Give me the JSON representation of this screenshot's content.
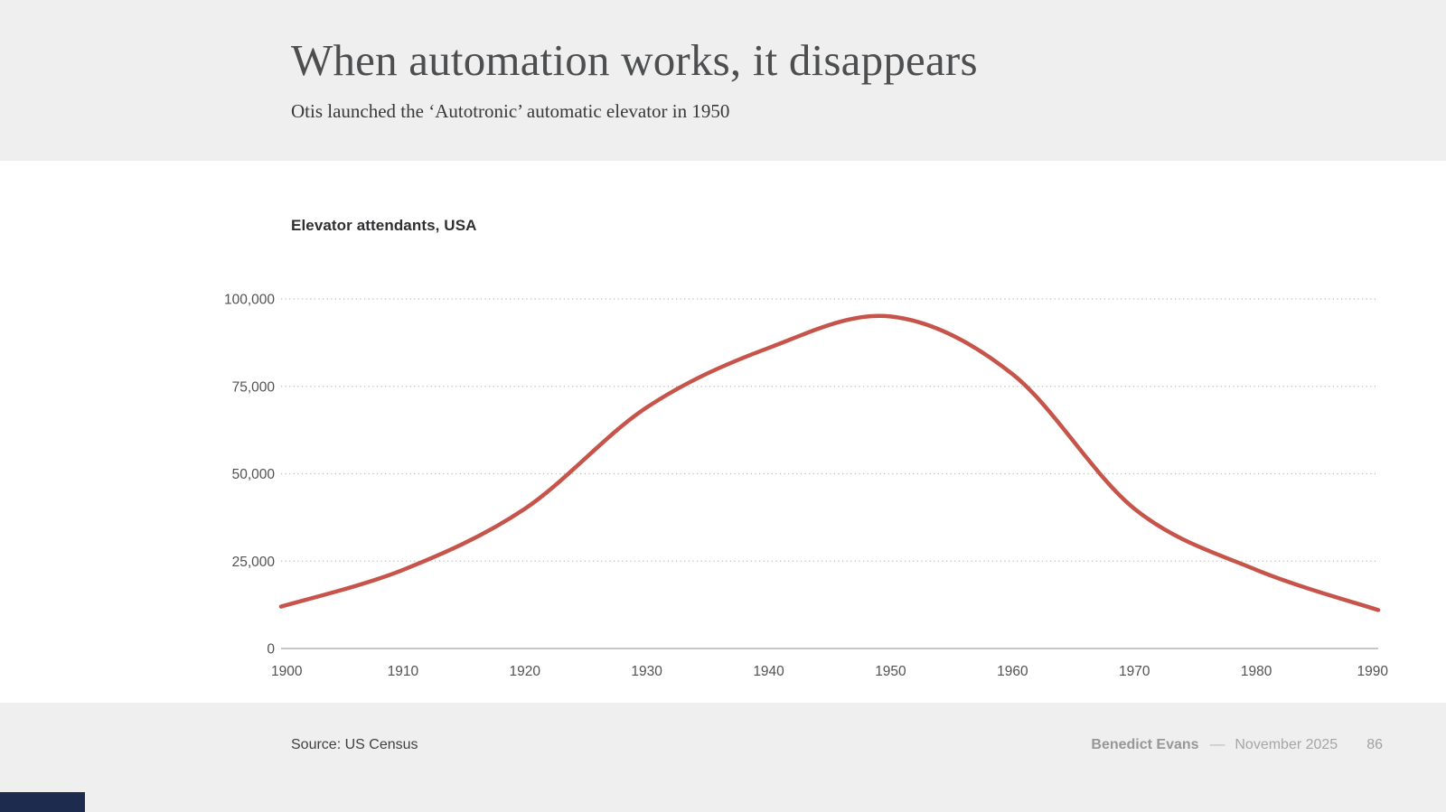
{
  "slide": {
    "title": "When automation works, it disappears",
    "subtitle": "Otis launched the ‘Autotronic’ automatic elevator in 1950"
  },
  "chart_data": {
    "type": "line",
    "title": "Elevator attendants, USA",
    "series": [
      {
        "name": "Elevator attendants, USA",
        "x": [
          1900,
          1910,
          1920,
          1930,
          1940,
          1950,
          1960,
          1970,
          1980,
          1990
        ],
        "values": [
          12000,
          22500,
          40000,
          69000,
          86000,
          95000,
          78500,
          40000,
          22500,
          11000
        ]
      }
    ],
    "x_tick_labels": [
      "1900",
      "1910",
      "1920",
      "1930",
      "1940",
      "1950",
      "1960",
      "1970",
      "1980",
      "1990"
    ],
    "y_ticks": [
      0,
      25000,
      50000,
      75000,
      100000
    ],
    "y_tick_labels": [
      "0",
      "25,000",
      "50,000",
      "75,000",
      "100,000"
    ],
    "xlim": [
      1900,
      1990
    ],
    "ylim": [
      0,
      100000
    ],
    "xlabel": "",
    "ylabel": "",
    "grid": "horizontal-dotted",
    "legend": "none",
    "line_color": "#c7544a",
    "grid_color": "#bcbcbe",
    "axis_color": "#b3b3b5",
    "annotations": []
  },
  "footer": {
    "source": "Source: US Census",
    "author": "Benedict Evans",
    "separator": "––",
    "date": "November 2025",
    "page": "86"
  },
  "progress_bar": {
    "color": "#1c2b4e",
    "fraction": 0.059
  }
}
